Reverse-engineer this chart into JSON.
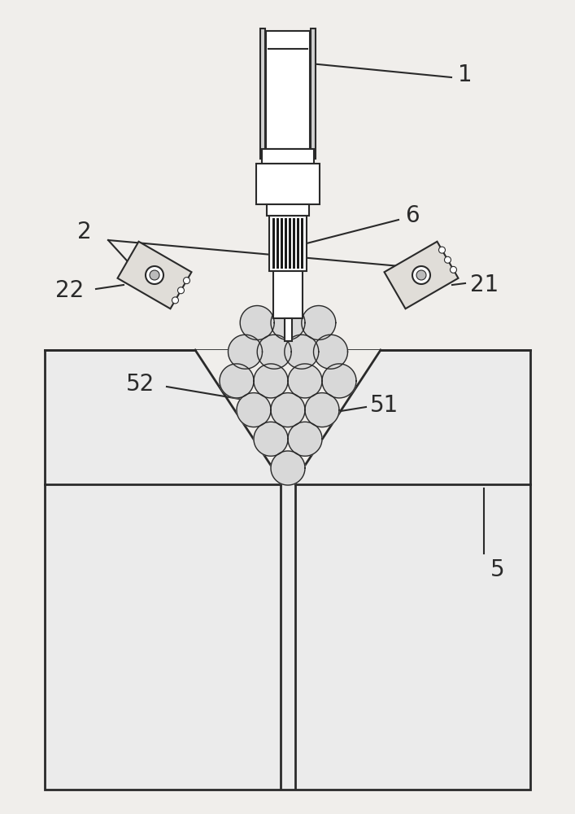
{
  "bg_color": "#f0eeeb",
  "line_color": "#2a2a2a",
  "fill_white": "#ffffff",
  "fill_light": "#e8e6e3",
  "fill_dark": "#1a1a1a",
  "label_1": "1",
  "label_2": "2",
  "label_5": "5",
  "label_6": "6",
  "label_21": "21",
  "label_22": "22",
  "label_51": "51",
  "label_52": "52",
  "font_size_label": 20,
  "fig_width": 7.07,
  "fig_height": 10.0,
  "dpi": 100
}
